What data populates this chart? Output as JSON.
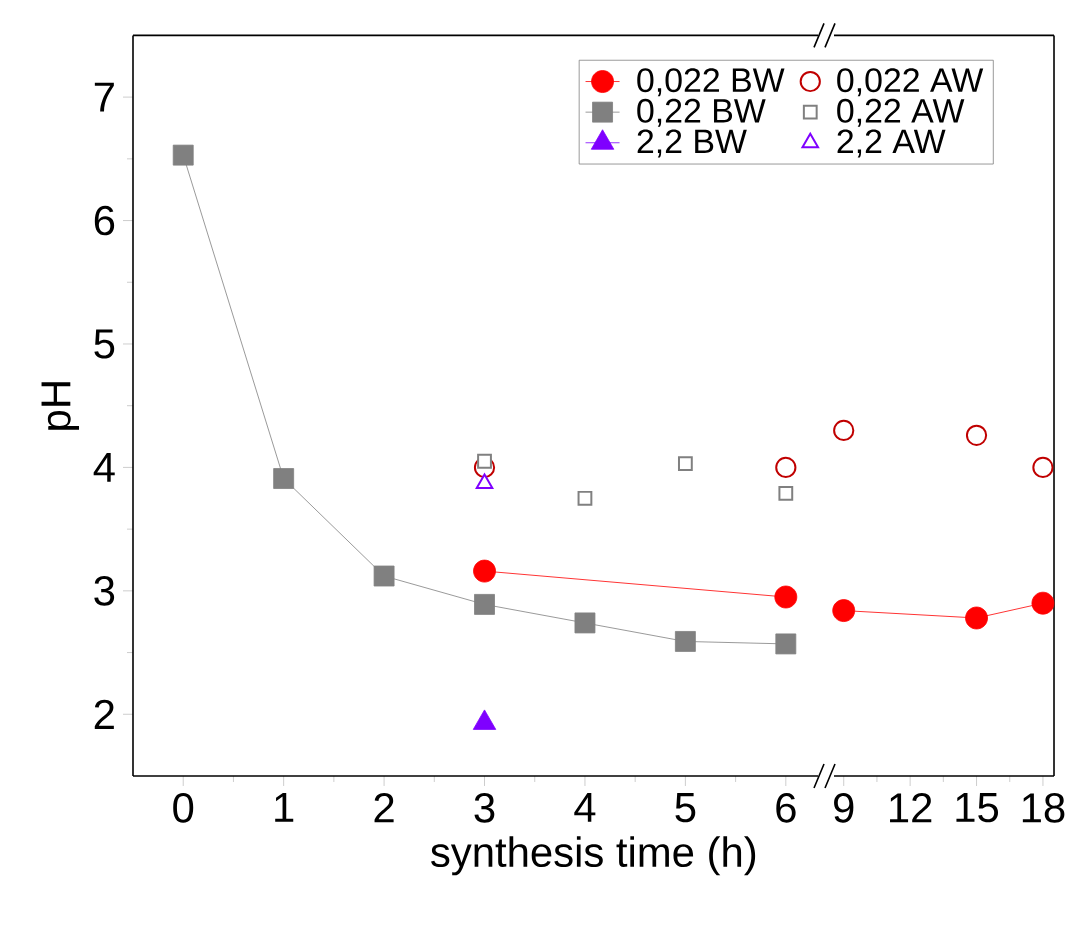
{
  "chart_data": [
    {
      "type": "line",
      "xlabel": "synthesis time (h)",
      "ylabel": "pH",
      "xlim": [
        -0.5,
        6.4
      ],
      "ylim": [
        1.5,
        7.5
      ],
      "xticks": [
        0,
        1,
        2,
        3,
        4,
        5,
        6
      ],
      "yticks": [
        2,
        3,
        4,
        5,
        6,
        7
      ],
      "legend": "top right",
      "series": [
        {
          "name": "0,022 BW",
          "marker": "circle",
          "color": "#ff0000",
          "x": [
            3,
            6
          ],
          "values": [
            3.16,
            2.95
          ]
        },
        {
          "name": "0,022 AW",
          "type": "scatter",
          "marker": "circle",
          "color": "#c00000",
          "x": [
            3,
            6
          ],
          "values": [
            4.0,
            4.0
          ]
        },
        {
          "name": "0,22 BW",
          "marker": "square",
          "color": "#808080",
          "x": [
            0,
            1,
            2,
            3,
            4,
            5,
            6
          ],
          "values": [
            6.53,
            3.91,
            3.12,
            2.89,
            2.74,
            2.59,
            2.57
          ]
        },
        {
          "name": "0,22 AW",
          "type": "scatter",
          "marker": "square",
          "color": "#808080",
          "x": [
            3,
            4,
            5,
            6
          ],
          "values": [
            4.05,
            3.75,
            4.03,
            3.79
          ]
        },
        {
          "name": "2,2 BW",
          "marker": "triangle",
          "color": "#7f00ff",
          "x": [
            3
          ],
          "values": [
            1.93
          ]
        },
        {
          "name": "2,2 AW",
          "type": "scatter",
          "marker": "triangle",
          "color": "#7f00ff",
          "x": [
            3
          ],
          "values": [
            3.87
          ]
        }
      ]
    },
    {
      "type": "line",
      "xlim": [
        8.2,
        18.5
      ],
      "ylim": [
        1.5,
        7.5
      ],
      "xticks": [
        9,
        12,
        15,
        18
      ],
      "tick_labels": "x",
      "series": [
        {
          "marker": "circle",
          "color": "#ff0000",
          "x": [
            9,
            15,
            18
          ],
          "values": [
            2.84,
            2.78,
            2.9
          ]
        },
        {
          "type": "scatter",
          "marker": "circle",
          "color": "#c00000",
          "x": [
            9,
            15,
            18
          ],
          "values": [
            4.3,
            4.26,
            4.0
          ]
        }
      ]
    }
  ]
}
